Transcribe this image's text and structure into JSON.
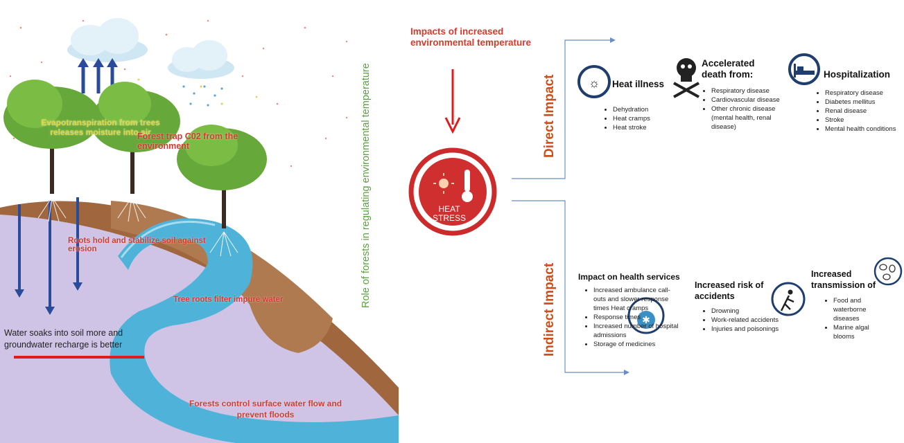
{
  "colors": {
    "earth_brown": "#b07a50",
    "river_blue": "#4fb3d9",
    "ground_purple": "#cfc4e6",
    "tree_green": "#67a83a",
    "arrow_navy": "#2a4a9a",
    "label_red": "#d63a2f",
    "label_yellow": "#e3d63c",
    "vertical_green": "#5aa040",
    "impact_orange": "#c9501c"
  },
  "left_panel": {
    "vertical_title": "Role of forests in regulating environmental temperature",
    "labels": {
      "evapotranspiration": "Evapotranspiration from trees releases moisture into air",
      "forest_trap": "Forest trap C02 from the environment",
      "roots_hold": "Roots hold and stabilize soil against erosion",
      "tree_roots_filter": "Tree roots filter impure water",
      "water_soaks": "Water soaks into soil more and groundwater recharge is better",
      "forests_control": "Forests control surface water flow and prevent floods"
    }
  },
  "right_panel": {
    "title": "Impacts of increased environmental temperature",
    "center_icon_text": [
      "HEAT",
      "STRESS"
    ],
    "direct_label": "Direct Impact",
    "indirect_label": "Indirect Impact",
    "direct": {
      "heat_illness": {
        "title": "Heat illness",
        "items": [
          "Dehydration",
          "Heat cramps",
          "Heat stroke"
        ]
      },
      "accelerated_death": {
        "title": "Accelerated death from:",
        "items": [
          "Respiratory disease",
          "Cardiovascular disease",
          "Other chronic disease (mental health, renal disease)"
        ]
      },
      "hospitalization": {
        "title": "Hospitalization",
        "items": [
          "Respiratory disease",
          "Diabetes mellitus",
          "Renal disease",
          "Stroke",
          "Mental health conditions"
        ]
      }
    },
    "indirect": {
      "health_services": {
        "title": "Impact on health services",
        "items": [
          "Increased ambulance call-outs and slower response times Heat cramps",
          "Response times",
          "Increased number of hospital admissions",
          "Storage of medicines"
        ]
      },
      "accidents": {
        "title": "Increased risk of accidents",
        "items": [
          "Drowning",
          "Work-related accidents",
          "Injuries and poisonings"
        ]
      },
      "transmission": {
        "title": "Increased transmission of",
        "items": [
          "Food and waterborne diseases",
          "Marine algal blooms"
        ]
      }
    }
  }
}
